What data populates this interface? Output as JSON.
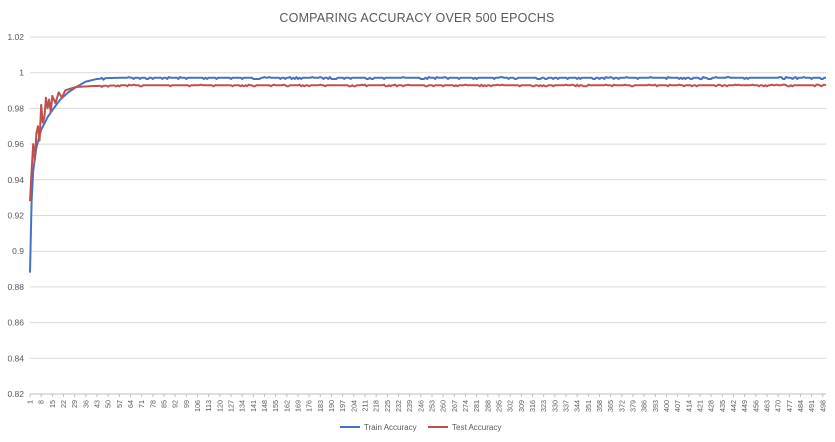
{
  "chart_data": {
    "type": "line",
    "title": "COMPARING ACCURACY OVER 500 EPOCHS",
    "xlabel": "",
    "ylabel": "",
    "ylim": [
      0.82,
      1.02
    ],
    "yticks": [
      0.82,
      0.84,
      0.86,
      0.88,
      0.9,
      0.92,
      0.94,
      0.96,
      0.98,
      1,
      1.02
    ],
    "ytick_labels": [
      "0.82",
      "0.84",
      "0.86",
      "0.88",
      "0.9",
      "0.92",
      "0.94",
      "0.96",
      "0.98",
      "1",
      "1.02"
    ],
    "xlim": [
      1,
      500
    ],
    "xtick_step": 7,
    "xtick_first": 1,
    "xtick_last": 498,
    "grid": "horizontal",
    "legend": "bottom",
    "series": [
      {
        "name": "Train Accuracy",
        "color": "#4472c4",
        "keypoints": [
          [
            1,
            0.888
          ],
          [
            2,
            0.928
          ],
          [
            3,
            0.945
          ],
          [
            5,
            0.958
          ],
          [
            8,
            0.968
          ],
          [
            12,
            0.975
          ],
          [
            15,
            0.979
          ],
          [
            20,
            0.985
          ],
          [
            25,
            0.989
          ],
          [
            30,
            0.992
          ],
          [
            36,
            0.995
          ],
          [
            43,
            0.9965
          ],
          [
            50,
            0.997
          ],
          [
            60,
            0.9972
          ],
          [
            500,
            0.9972
          ]
        ],
        "plateau_jitter": 0.0007
      },
      {
        "name": "Test Accuracy",
        "color": "#c0504d",
        "keypoints": [
          [
            1,
            0.928
          ],
          [
            2,
            0.945
          ],
          [
            3,
            0.96
          ],
          [
            4,
            0.951
          ],
          [
            5,
            0.966
          ],
          [
            6,
            0.97
          ],
          [
            7,
            0.962
          ],
          [
            8,
            0.982
          ],
          [
            9,
            0.972
          ],
          [
            10,
            0.975
          ],
          [
            11,
            0.986
          ],
          [
            12,
            0.98
          ],
          [
            13,
            0.985
          ],
          [
            14,
            0.978
          ],
          [
            15,
            0.987
          ],
          [
            17,
            0.983
          ],
          [
            19,
            0.989
          ],
          [
            21,
            0.986
          ],
          [
            23,
            0.99
          ],
          [
            26,
            0.991
          ],
          [
            30,
            0.992
          ],
          [
            40,
            0.9925
          ],
          [
            60,
            0.993
          ],
          [
            500,
            0.993
          ]
        ],
        "plateau_jitter": 0.0006
      }
    ]
  }
}
